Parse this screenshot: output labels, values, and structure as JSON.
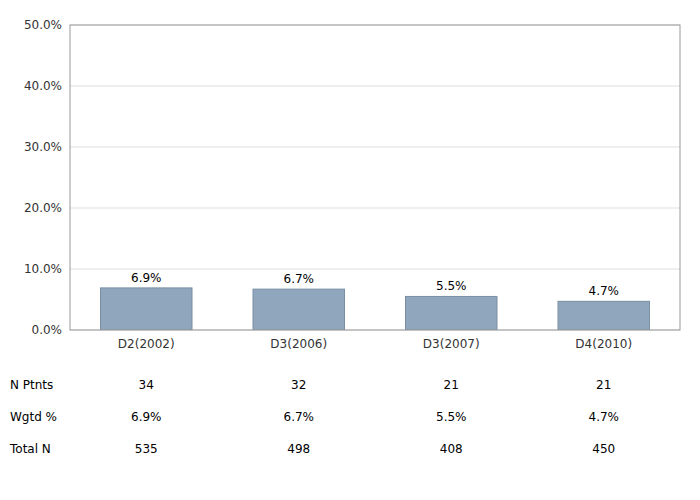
{
  "chart_data": {
    "type": "bar",
    "categories": [
      "D2(2002)",
      "D3(2006)",
      "D3(2007)",
      "D4(2010)"
    ],
    "values": [
      6.9,
      6.7,
      5.5,
      4.7
    ],
    "value_labels": [
      "6.9%",
      "6.7%",
      "5.5%",
      "4.7%"
    ],
    "data_labels": true,
    "color": "#8fa6bd",
    "ylim": [
      0,
      50
    ],
    "yticks": [
      {
        "value": 0,
        "label": "0.0%"
      },
      {
        "value": 10,
        "label": "10.0%"
      },
      {
        "value": 20,
        "label": "20.0%"
      },
      {
        "value": 30,
        "label": "30.0%"
      },
      {
        "value": 40,
        "label": "40.0%"
      },
      {
        "value": 50,
        "label": "50.0%"
      }
    ],
    "grid": true,
    "table": [
      {
        "label": "N Ptnts",
        "values": [
          34,
          32,
          21,
          21
        ]
      },
      {
        "label": "Wgtd %",
        "values": [
          6.9,
          6.7,
          5.5,
          4.7
        ],
        "value_labels": [
          "6.9%",
          "6.7%",
          "5.5%",
          "4.7%"
        ]
      },
      {
        "label": "Total N",
        "values": [
          535,
          498,
          408,
          450
        ]
      }
    ]
  }
}
